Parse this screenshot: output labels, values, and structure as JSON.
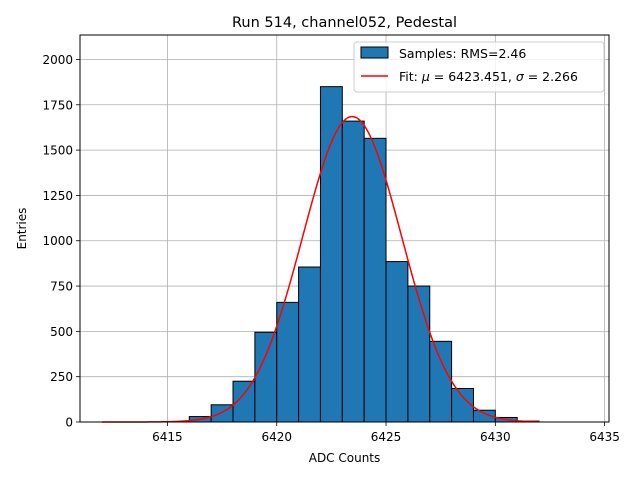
{
  "chart_data": {
    "type": "histogram",
    "title": "Run 514, channel052, Pedestal",
    "xlabel": "ADC Counts",
    "ylabel": "Entries",
    "xlim": [
      6411,
      6435.2
    ],
    "ylim": [
      0,
      2135
    ],
    "xticks": [
      6415,
      6420,
      6425,
      6430,
      6435
    ],
    "yticks": [
      0,
      250,
      500,
      750,
      1000,
      1250,
      1500,
      1750,
      2000
    ],
    "grid": true,
    "legend_position": "top-right",
    "bar_color": "#1f77b4",
    "fit_color": "#ff0000",
    "bins": [
      {
        "x": 6412,
        "count": 0
      },
      {
        "x": 6413,
        "count": 0
      },
      {
        "x": 6414,
        "count": 0
      },
      {
        "x": 6415,
        "count": 0
      },
      {
        "x": 6416,
        "count": 30
      },
      {
        "x": 6417,
        "count": 95
      },
      {
        "x": 6418,
        "count": 225
      },
      {
        "x": 6419,
        "count": 495
      },
      {
        "x": 6420,
        "count": 660
      },
      {
        "x": 6421,
        "count": 855
      },
      {
        "x": 6422,
        "count": 1850
      },
      {
        "x": 6423,
        "count": 1660
      },
      {
        "x": 6424,
        "count": 1565
      },
      {
        "x": 6425,
        "count": 885
      },
      {
        "x": 6426,
        "count": 750
      },
      {
        "x": 6427,
        "count": 445
      },
      {
        "x": 6428,
        "count": 185
      },
      {
        "x": 6429,
        "count": 65
      },
      {
        "x": 6430,
        "count": 25
      },
      {
        "x": 6431,
        "count": 5
      },
      {
        "x": 6432,
        "count": 0
      },
      {
        "x": 6433,
        "count": 0
      }
    ],
    "bin_width": 1,
    "fit": {
      "mu": 6423.451,
      "sigma": 2.266,
      "amplitude": 1685,
      "x_range": [
        6412,
        6432
      ]
    },
    "legend": [
      {
        "kind": "bar",
        "text": "Samples: RMS=2.46"
      },
      {
        "kind": "line",
        "text_prefix": "Fit: ",
        "mu_symbol": "μ",
        "mu_text": " = 6423.451, ",
        "sigma_symbol": "σ",
        "sigma_text": " = 2.266"
      }
    ]
  }
}
